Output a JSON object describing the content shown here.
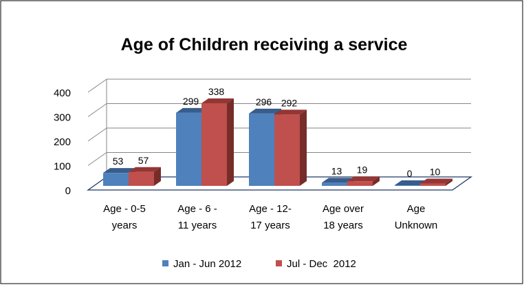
{
  "chart_data": {
    "type": "bar",
    "title": "Age of Children receiving a service",
    "categories": [
      [
        "Age - 0-5",
        "years"
      ],
      [
        "Age - 6 -",
        "11 years"
      ],
      [
        "Age - 12-",
        "17 years"
      ],
      [
        "Age over",
        "18 years"
      ],
      [
        "Age",
        "Unknown"
      ]
    ],
    "series": [
      {
        "name": "Jan - Jun 2012",
        "values": [
          53,
          299,
          296,
          13,
          0
        ],
        "color": "#4F81BD",
        "side_color": "#2C4D75",
        "top_color": "#385D8A"
      },
      {
        "name": "Jul - Dec  2012",
        "values": [
          57,
          338,
          292,
          19,
          10
        ],
        "color": "#C0504D",
        "side_color": "#772C2A",
        "top_color": "#943634"
      }
    ],
    "yticks": [
      0,
      100,
      200,
      300,
      400
    ],
    "ylim": [
      0,
      400
    ],
    "xlabel": "",
    "ylabel": "",
    "grid": true,
    "legend_position": "bottom",
    "three_d": true
  }
}
